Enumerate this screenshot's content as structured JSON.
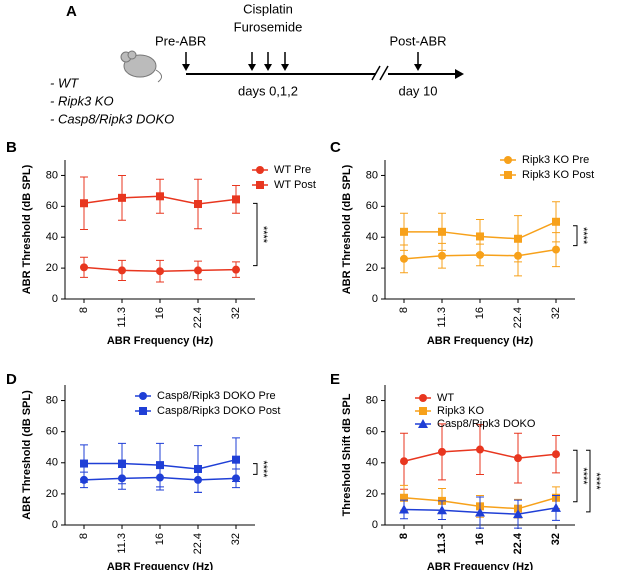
{
  "timeline": {
    "label": "A",
    "pre": "Pre-ABR",
    "drug1": "Cisplatin",
    "drug2": "Furosemide",
    "days": "days 0,1,2",
    "post": "Post-ABR",
    "day": "day 10",
    "groups": [
      "- WT",
      "- Ripk3 KO",
      "- Casp8/Ripk3 DOKO"
    ]
  },
  "chart_data": [
    {
      "type": "line",
      "title": "B",
      "ylabel": "ABR Threshold (dB SPL)",
      "xlabel": "ABR Frequency (Hz)",
      "categories": [
        "8",
        "11.3",
        "16",
        "22.4",
        "32"
      ],
      "ylim": [
        0,
        90
      ],
      "yticks": [
        0,
        20,
        40,
        60,
        80
      ],
      "series": [
        {
          "name": "WT Pre",
          "color": "#e8361f",
          "marker": "circle",
          "values": [
            20.5,
            18.5,
            18,
            18.5,
            19
          ],
          "errors": [
            6.5,
            6.5,
            7,
            6,
            5
          ]
        },
        {
          "name": "WT Post",
          "color": "#e8361f",
          "marker": "square",
          "values": [
            62,
            65.5,
            66.5,
            61.5,
            64.5
          ],
          "errors": [
            17,
            14.5,
            11,
            16,
            9
          ]
        }
      ],
      "annotations": [
        "****"
      ]
    },
    {
      "type": "line",
      "title": "C",
      "ylabel": "ABR Threshold (dB SPL)",
      "xlabel": "ABR Frequency (Hz)",
      "categories": [
        "8",
        "11.3",
        "16",
        "22.4",
        "32"
      ],
      "ylim": [
        0,
        90
      ],
      "yticks": [
        0,
        20,
        40,
        60,
        80
      ],
      "series": [
        {
          "name": "Ripk3 KO Pre",
          "color": "#f7a11a",
          "marker": "circle",
          "values": [
            26,
            28,
            28.5,
            28,
            32
          ],
          "errors": [
            9,
            8,
            7,
            13,
            11
          ]
        },
        {
          "name": "Ripk3 KO Post",
          "color": "#f7a11a",
          "marker": "square",
          "values": [
            43.5,
            43.5,
            40.5,
            39,
            50
          ],
          "errors": [
            12,
            12,
            11,
            15,
            13
          ]
        }
      ],
      "annotations": [
        "****"
      ]
    },
    {
      "type": "line",
      "title": "D",
      "ylabel": "ABR Threshold (dB SPL)",
      "xlabel": "ABR Frequency (Hz)",
      "categories": [
        "8",
        "11.3",
        "16",
        "22.4",
        "32"
      ],
      "ylim": [
        0,
        90
      ],
      "yticks": [
        0,
        20,
        40,
        60,
        80
      ],
      "series": [
        {
          "name": "Casp8/Ripk3 DOKO Pre",
          "color": "#1f3fd6",
          "marker": "circle",
          "values": [
            29,
            30,
            30.5,
            29,
            30
          ],
          "errors": [
            5,
            7,
            8,
            8,
            6
          ]
        },
        {
          "name": "Casp8/Ripk3 DOKO Post",
          "color": "#1f3fd6",
          "marker": "square",
          "values": [
            39.5,
            39.5,
            38.5,
            36,
            42
          ],
          "errors": [
            12,
            13,
            14,
            15,
            14
          ]
        }
      ],
      "annotations": [
        "****"
      ]
    },
    {
      "type": "line",
      "title": "E",
      "ylabel": "Threshold Shift dB SPL",
      "xlabel": "ABR Frequency (Hz)",
      "categories": [
        "8",
        "11.3",
        "16",
        "22.4",
        "32"
      ],
      "ylim": [
        0,
        90
      ],
      "yticks": [
        0,
        20,
        40,
        60,
        80
      ],
      "series": [
        {
          "name": "WT",
          "color": "#e8361f",
          "marker": "circle",
          "values": [
            41,
            47,
            48.5,
            43,
            45.5
          ],
          "errors": [
            18,
            18,
            16,
            16,
            12
          ]
        },
        {
          "name": "Ripk3 KO",
          "color": "#f7a11a",
          "marker": "square",
          "values": [
            17.5,
            15.5,
            12,
            10.5,
            17.5
          ],
          "errors": [
            8,
            8,
            7,
            6,
            7
          ]
        },
        {
          "name": "Casp8/Ripk3 DOKO",
          "color": "#1f3fd6",
          "marker": "triangle",
          "values": [
            10,
            9.5,
            8,
            7,
            11
          ],
          "errors": [
            6,
            6,
            10,
            9,
            8
          ]
        }
      ],
      "annotations": [
        "****",
        "****"
      ]
    }
  ]
}
